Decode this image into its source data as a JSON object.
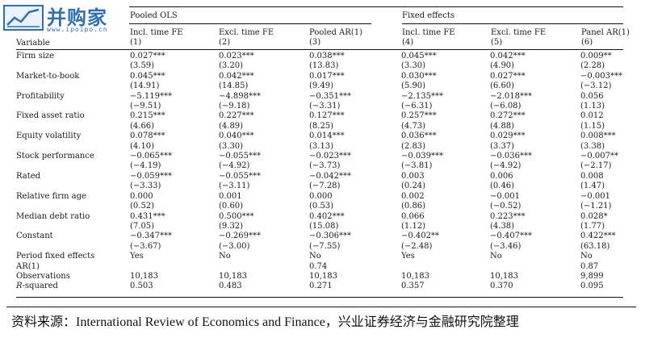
{
  "logo": {
    "name": "并购家",
    "url": "www.ipoipo.cn"
  },
  "groups": {
    "pooled": "Pooled OLS",
    "fixed": "Fixed effects"
  },
  "header": {
    "variable": "Variable",
    "cols": [
      {
        "title": "Incl. time FE",
        "num": "(1)"
      },
      {
        "title": "Excl. time FE",
        "num": "(2)"
      },
      {
        "title": "Pooled AR(1)",
        "num": "(3)"
      },
      {
        "title": "Incl. time FE",
        "num": "(4)"
      },
      {
        "title": "Excl. time FE",
        "num": "(5)"
      },
      {
        "title": "Panel AR(1)",
        "num": "(6)"
      }
    ]
  },
  "rows": [
    {
      "label": "Firm size",
      "coef": [
        "0.027***",
        "0.023***",
        "0.038***",
        "0.045***",
        "0.042***",
        "0.009**"
      ],
      "t": [
        "(3.59)",
        "(3.20)",
        "(13.83)",
        "(3.30)",
        "(4.90)",
        "(2.28)"
      ]
    },
    {
      "label": "Market-to-book",
      "coef": [
        "0.045***",
        "0.042***",
        "0.017***",
        "0.030***",
        "0.027***",
        "−0.003***"
      ],
      "t": [
        "(14.91)",
        "(14.85)",
        "(9.49)",
        "(5.90)",
        "(6.60)",
        "(−3.12)"
      ]
    },
    {
      "label": "Profitability",
      "coef": [
        "−5.119***",
        "−4.898***",
        "−0.351***",
        "−2.135***",
        "−2.018***",
        "0.056"
      ],
      "t": [
        "(−9.51)",
        "(−9.18)",
        "(−3.31)",
        "(−6.31)",
        "(−6.08)",
        "(1.13)"
      ]
    },
    {
      "label": "Fixed asset ratio",
      "coef": [
        "0.215***",
        "0.227***",
        "0.127***",
        "0.257***",
        "0.272***",
        "0.012"
      ],
      "t": [
        "(4.66)",
        "(4.89)",
        "(8.25)",
        "(4.73)",
        "(4.88)",
        "(1.15)"
      ]
    },
    {
      "label": "Equity volatility",
      "coef": [
        "0.078***",
        "0.040***",
        "0.014***",
        "0.036***",
        "0.029***",
        "0.008***"
      ],
      "t": [
        "(4.10)",
        "(3.30)",
        "(3.13)",
        "(2.83)",
        "(3.37)",
        "(3.38)"
      ]
    },
    {
      "label": "Stock performance",
      "coef": [
        "−0.065***",
        "−0.055***",
        "−0.023***",
        "−0.039***",
        "−0.036***",
        "−0.007**"
      ],
      "t": [
        "(−4.19)",
        "(−4.92)",
        "(−3.73)",
        "(−3.81)",
        "(−4.92)",
        "(−2.17)"
      ]
    },
    {
      "label": "Rated",
      "coef": [
        "−0.059***",
        "−0.055***",
        "−0.042***",
        "0.003",
        "0.006",
        "0.008"
      ],
      "t": [
        "(−3.33)",
        "(−3.11)",
        "(−7.28)",
        "(0.24)",
        "(0.46)",
        "(1.47)"
      ]
    },
    {
      "label": "Relative firm age",
      "coef": [
        "0.000",
        "0.001",
        "0.000",
        "0.002",
        "−0.001",
        "−0.001"
      ],
      "t": [
        "(0.52)",
        "(0.60)",
        "(0.53)",
        "(0.86)",
        "(−0.52)",
        "(−1.21)"
      ]
    },
    {
      "label": "Median debt ratio",
      "coef": [
        "0.431***",
        "0.500***",
        "0.402***",
        "0.066",
        "0.223***",
        "0.028*"
      ],
      "t": [
        "(7.05)",
        "(9.32)",
        "(15.08)",
        "(1.12)",
        "(4.38)",
        "(1.77)"
      ]
    },
    {
      "label": "Constant",
      "coef": [
        "−0.347***",
        "−0.269***",
        "−0.306***",
        "−0.402**",
        "−0.407***",
        "0.422***"
      ],
      "t": [
        "(−3.67)",
        "(−3.00)",
        "(−7.55)",
        "(−2.48)",
        "(−3.46)",
        "(63.18)"
      ]
    }
  ],
  "extra_rows": [
    {
      "label": "Period fixed effects",
      "vals": [
        "Yes",
        "No",
        "No",
        "Yes",
        "No",
        "No"
      ]
    },
    {
      "label": "AR(1)",
      "vals": [
        "",
        "",
        "0.74",
        "",
        "",
        "0.87"
      ]
    },
    {
      "label": "Observations",
      "vals": [
        "10,183",
        "10,183",
        "10,183",
        "10,183",
        "10,183",
        "9,899"
      ]
    },
    {
      "label_prefix": "R",
      "label_suffix": "-squared",
      "vals": [
        "0.503",
        "0.483",
        "0.271",
        "0.357",
        "0.370",
        "0.095"
      ]
    }
  ],
  "source": "资料来源：International Review of Economics and Finance，兴业证券经济与金融研究院整理"
}
